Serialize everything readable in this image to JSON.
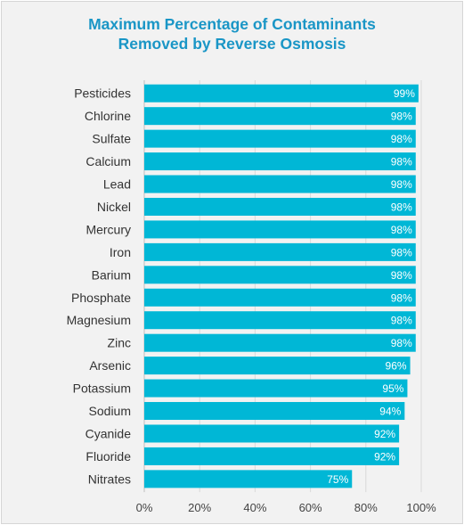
{
  "chart_data": {
    "type": "bar",
    "orientation": "horizontal",
    "title_lines": [
      "Maximum Percentage of Contaminants",
      "Removed by Reverse Osmosis"
    ],
    "categories": [
      "Pesticides",
      "Chlorine",
      "Sulfate",
      "Calcium",
      "Lead",
      "Nickel",
      "Mercury",
      "Iron",
      "Barium",
      "Phosphate",
      "Magnesium",
      "Zinc",
      "Arsenic",
      "Potassium",
      "Sodium",
      "Cyanide",
      "Fluoride",
      "Nitrates"
    ],
    "values": [
      99,
      98,
      98,
      98,
      98,
      98,
      98,
      98,
      98,
      98,
      98,
      98,
      96,
      95,
      94,
      92,
      92,
      75
    ],
    "value_labels": [
      "99%",
      "98%",
      "98%",
      "98%",
      "98%",
      "98%",
      "98%",
      "98%",
      "98%",
      "98%",
      "98%",
      "98%",
      "96%",
      "95%",
      "94%",
      "92%",
      "92%",
      "75%"
    ],
    "x_ticks": [
      0,
      20,
      40,
      60,
      80,
      100
    ],
    "x_tick_labels": [
      "0%",
      "20%",
      "40%",
      "60%",
      "80%",
      "100%"
    ],
    "xlim": [
      0,
      100
    ],
    "grid": "vertical",
    "bar_color": "#00b7d6",
    "title_color": "#1a96c6",
    "legend": "none"
  }
}
